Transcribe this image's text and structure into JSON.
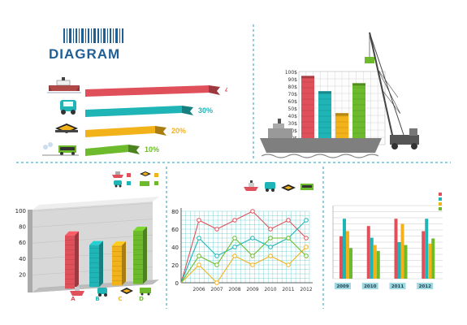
{
  "header": {
    "title": "DIAGRAM"
  },
  "colors": {
    "red": "#e0505a",
    "teal": "#1fb5b7",
    "orange": "#f2b21a",
    "green": "#6dbb2c",
    "blue": "#1f5f96",
    "dash": "#2a9ab5"
  },
  "icons": [
    "ship-icon",
    "truck-icon",
    "cargo-icon",
    "train-icon"
  ],
  "chart_data": [
    {
      "type": "bar",
      "title": "",
      "orientation": "horizontal",
      "categories": [
        "ship",
        "truck",
        "cargo",
        "train"
      ],
      "values": [
        40,
        30,
        20,
        10
      ],
      "labels": [
        "40%",
        "30%",
        "20%",
        "10%"
      ]
    },
    {
      "type": "bar",
      "title": "",
      "y_ticks": [
        "100$",
        "90$",
        "80$",
        "70$",
        "60$",
        "50$",
        "40$",
        "30$",
        "20$",
        "10$"
      ],
      "ylim": [
        0,
        100
      ],
      "values": [
        94,
        73,
        43,
        84
      ]
    },
    {
      "type": "bar",
      "title": "",
      "categories": [
        "A",
        "B",
        "C",
        "D"
      ],
      "values": [
        80,
        63,
        60,
        80
      ],
      "y_ticks": [
        "100",
        "80",
        "60",
        "40",
        "20"
      ],
      "ylim": [
        0,
        100
      ]
    },
    {
      "type": "line",
      "title": "",
      "x": [
        "2006",
        "2007",
        "2008",
        "2009",
        "2010",
        "2011",
        "2012"
      ],
      "y_ticks": [
        "80",
        "60",
        "40",
        "20",
        "0"
      ],
      "ylim": [
        0,
        80
      ],
      "series": [
        {
          "values": [
            70,
            60,
            70,
            80,
            60,
            70,
            50
          ]
        },
        {
          "values": [
            50,
            30,
            40,
            50,
            40,
            50,
            70
          ]
        },
        {
          "values": [
            20,
            0,
            30,
            20,
            30,
            20,
            40
          ]
        },
        {
          "values": [
            30,
            20,
            50,
            30,
            50,
            50,
            30
          ]
        }
      ],
      "start_point": 0
    },
    {
      "type": "bar",
      "title": "",
      "categories": [
        "2009",
        "2010",
        "2011",
        "2012"
      ],
      "ylim": [
        0,
        100
      ],
      "series": [
        {
          "values": [
            58,
            72,
            82,
            65
          ]
        },
        {
          "values": [
            82,
            56,
            50,
            82
          ]
        },
        {
          "values": [
            65,
            46,
            75,
            48
          ]
        },
        {
          "values": [
            42,
            38,
            46,
            55
          ]
        }
      ]
    }
  ]
}
